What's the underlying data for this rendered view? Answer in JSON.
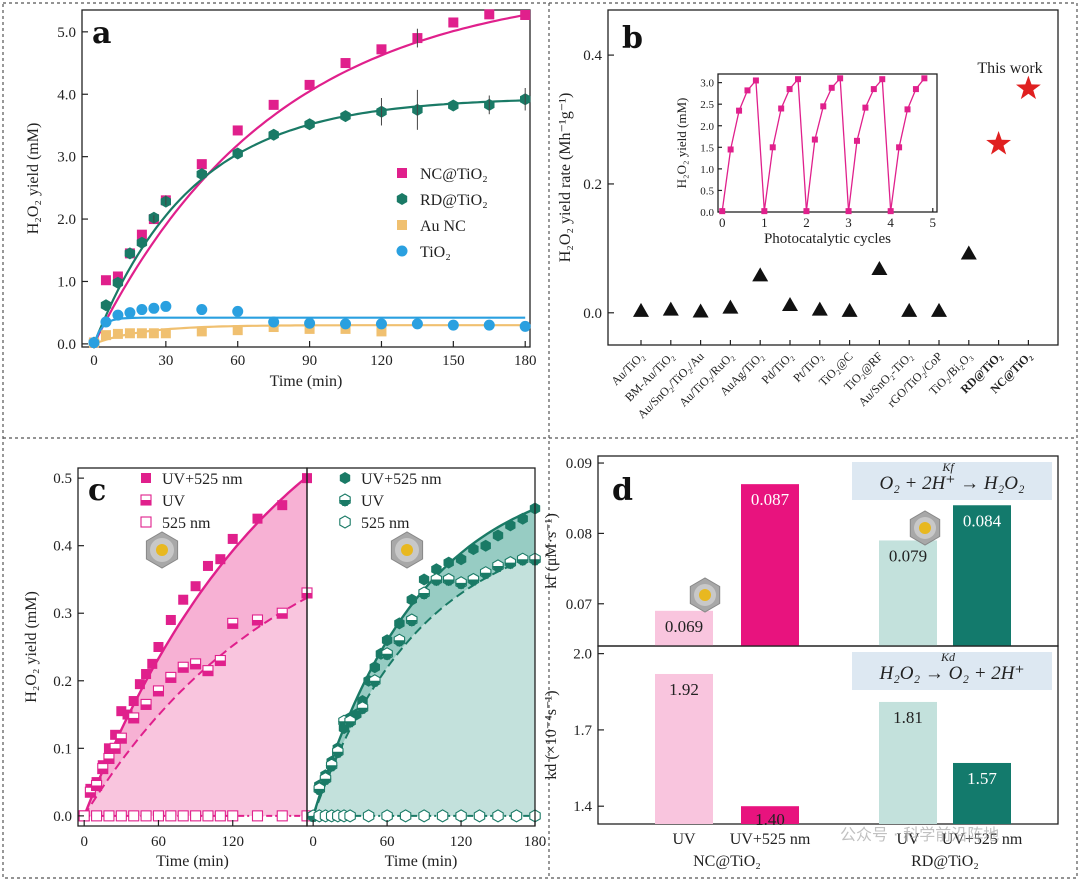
{
  "colors": {
    "nc": "#e0208c",
    "rd": "#1a7a66",
    "au": "#f0c070",
    "tio2": "#2aa0e0",
    "nc_fill": "#f6a8cf",
    "rd_fill": "#8cc6bd",
    "nc_light": "#f9c5de",
    "rd_light": "#c3e1dc",
    "star": "#e02020",
    "tri": "#111111",
    "box": "#dde8f2"
  },
  "watermark": "公众号 · 科学前沿阵地",
  "chart_data": [
    {
      "id": "a",
      "panel_label": "a",
      "type": "scatter",
      "xlabel": "Time (min)",
      "ylabel": "H₂O₂ yield (mM)",
      "xlim": [
        -5,
        182
      ],
      "ylim": [
        -0.05,
        5.35
      ],
      "xticks": [
        0,
        30,
        60,
        90,
        120,
        150,
        180
      ],
      "yticks": [
        0,
        1,
        2,
        3,
        4,
        5
      ],
      "ytick_labels": [
        "0.0",
        "1.0",
        "2.0",
        "3.0",
        "4.0",
        "5.0"
      ],
      "series": [
        {
          "name": "NC@TiO₂",
          "marker": "square",
          "color": "#e0208c",
          "x": [
            0,
            5,
            10,
            15,
            20,
            25,
            30,
            45,
            60,
            75,
            90,
            105,
            120,
            135,
            150,
            165,
            180
          ],
          "y": [
            0.02,
            1.02,
            1.08,
            1.45,
            1.75,
            2.0,
            2.3,
            2.88,
            3.42,
            3.83,
            4.15,
            4.5,
            4.72,
            4.9,
            5.15,
            5.28,
            5.27
          ],
          "fit": "exp",
          "fit_params": [
            5.8,
            0.0133
          ]
        },
        {
          "name": "RD@TiO₂",
          "marker": "hexagon",
          "color": "#1a7a66",
          "x": [
            0,
            5,
            10,
            15,
            20,
            25,
            30,
            45,
            60,
            75,
            90,
            105,
            120,
            135,
            150,
            165,
            180
          ],
          "y": [
            0.02,
            0.62,
            0.98,
            1.45,
            1.62,
            2.02,
            2.28,
            2.72,
            3.05,
            3.35,
            3.52,
            3.65,
            3.72,
            3.75,
            3.82,
            3.83,
            3.92
          ],
          "fit": "exp",
          "fit_params": [
            3.95,
            0.0245
          ]
        },
        {
          "name": "Au NC",
          "marker": "square",
          "color": "#f0c070",
          "x": [
            0,
            5,
            10,
            15,
            20,
            25,
            30,
            45,
            60,
            75,
            90,
            105,
            120
          ],
          "y": [
            0.02,
            0.14,
            0.16,
            0.17,
            0.17,
            0.17,
            0.17,
            0.2,
            0.22,
            0.27,
            0.24,
            0.24,
            0.2
          ],
          "fit": "exp",
          "fit_params": [
            0.3,
            0.05
          ]
        },
        {
          "name": "TiO₂",
          "marker": "circle",
          "color": "#2aa0e0",
          "x": [
            0,
            5,
            10,
            15,
            20,
            25,
            30,
            45,
            60,
            75,
            90,
            105,
            120,
            135,
            150,
            165,
            180
          ],
          "y": [
            0.02,
            0.35,
            0.46,
            0.5,
            0.55,
            0.57,
            0.6,
            0.55,
            0.52,
            0.35,
            0.33,
            0.32,
            0.32,
            0.32,
            0.3,
            0.3,
            0.28
          ],
          "fit": "exp",
          "fit_params": [
            0.42,
            0.3
          ]
        }
      ]
    },
    {
      "id": "b",
      "panel_label": "b",
      "type": "scatter",
      "ylabel": "H₂O₂ yield rate (Mh⁻¹g⁻¹)",
      "ylim": [
        -0.05,
        0.47
      ],
      "yticks": [
        0,
        0.2,
        0.4
      ],
      "ytick_labels": [
        "0.0",
        "0.2",
        "0.4"
      ],
      "categories": [
        "Au/TiO₂",
        "BM-Au/TiO₂",
        "Au/SnO₂/TiO₂/Au",
        "Au/TiO₂/RuO₂",
        "AuAg/TiO₂",
        "Pd/TiO₂",
        "Pt/TiO₂",
        "TiO₂@C",
        "TiO₂@RF",
        "Au/SnO₂-TiO₂",
        "rGO/TiO₂/CoP",
        "TiO₂/Bi₂O₃",
        "RD@TiO₂",
        "NC@TiO₂"
      ],
      "highlight": [
        "RD@TiO₂",
        "NC@TiO₂"
      ],
      "values": [
        0.003,
        0.005,
        0.002,
        0.008,
        0.058,
        0.012,
        0.005,
        0.003,
        0.068,
        0.003,
        0.003,
        0.092,
        0.262,
        0.348
      ],
      "annotation": "This work",
      "inset": {
        "xlabel": "Photocatalytic cycles",
        "ylabel": "H₂O₂ yield (mM)",
        "xlim": [
          -0.1,
          5.1
        ],
        "ylim": [
          0,
          3.2
        ],
        "xticks": [
          0,
          1,
          2,
          3,
          4,
          5
        ],
        "yticks": [
          0,
          0.5,
          1,
          1.5,
          2,
          2.5,
          3
        ],
        "ytick_labels": [
          "0.0",
          "0.5",
          "1.0",
          "1.5",
          "2.0",
          "2.5",
          "3.0"
        ],
        "cycles": [
          [
            0.02,
            1.45,
            2.35,
            2.82,
            3.05
          ],
          [
            0.02,
            1.5,
            2.4,
            2.85,
            3.08
          ],
          [
            0.02,
            1.68,
            2.45,
            2.88,
            3.1
          ],
          [
            0.02,
            1.65,
            2.42,
            2.85,
            3.08
          ],
          [
            0.02,
            1.5,
            2.38,
            2.85,
            3.1
          ]
        ]
      }
    },
    {
      "id": "c1",
      "panel_label": "c",
      "type": "scatter",
      "xlabel": "Time (min)",
      "ylabel": "H₂O₂ yield (mM)",
      "xlim": [
        -5,
        180
      ],
      "ylim": [
        -0.015,
        0.515
      ],
      "xticks": [
        0,
        60,
        120
      ],
      "yticks": [
        0,
        0.1,
        0.2,
        0.3,
        0.4,
        0.5
      ],
      "ytick_labels": [
        "0.0",
        "0.1",
        "0.2",
        "0.3",
        "0.4",
        "0.5"
      ],
      "series": [
        {
          "name": "UV+525 nm",
          "marker": "square",
          "color": "#e0208c",
          "x": [
            0,
            5,
            10,
            15,
            20,
            25,
            30,
            35,
            40,
            45,
            50,
            55,
            60,
            70,
            80,
            90,
            100,
            110,
            120,
            140,
            160,
            180
          ],
          "y": [
            0.0,
            0.04,
            0.05,
            0.075,
            0.1,
            0.12,
            0.155,
            0.15,
            0.17,
            0.195,
            0.21,
            0.225,
            0.25,
            0.29,
            0.32,
            0.34,
            0.37,
            0.38,
            0.41,
            0.44,
            0.46,
            0.5
          ],
          "fit": "exp",
          "fit_params": [
            0.74,
            0.0063
          ]
        },
        {
          "name": "UV",
          "marker": "half-square",
          "color": "#e0208c",
          "x": [
            0,
            5,
            10,
            15,
            20,
            25,
            30,
            40,
            50,
            60,
            70,
            80,
            90,
            100,
            110,
            120,
            140,
            160,
            180
          ],
          "y": [
            0.0,
            0.035,
            0.045,
            0.07,
            0.085,
            0.1,
            0.115,
            0.145,
            0.165,
            0.185,
            0.205,
            0.22,
            0.225,
            0.215,
            0.23,
            0.285,
            0.29,
            0.3,
            0.33
          ],
          "fit": "exp",
          "fit_params": [
            0.48,
            0.0062
          ]
        },
        {
          "name": "525 nm",
          "marker": "open-square",
          "color": "#e0208c",
          "x": [
            0,
            10,
            20,
            30,
            40,
            50,
            60,
            70,
            80,
            90,
            100,
            110,
            120,
            140,
            160,
            180
          ],
          "y": [
            0,
            0,
            0,
            0,
            0,
            0,
            0,
            0,
            0,
            0,
            0,
            0,
            0,
            0,
            0,
            0
          ],
          "fit": "flat"
        }
      ]
    },
    {
      "id": "c2",
      "panel_label": "",
      "type": "scatter",
      "xlabel": "Time (min)",
      "xlim": [
        -5,
        180
      ],
      "ylim": [
        -0.015,
        0.515
      ],
      "xticks": [
        0,
        60,
        120,
        180
      ],
      "series": [
        {
          "name": "UV+525 nm",
          "marker": "hexagon",
          "color": "#1a7a66",
          "x": [
            0,
            5,
            10,
            15,
            20,
            25,
            30,
            35,
            40,
            45,
            50,
            55,
            60,
            70,
            80,
            90,
            100,
            110,
            120,
            130,
            140,
            150,
            160,
            170,
            180
          ],
          "y": [
            0.0,
            0.045,
            0.06,
            0.08,
            0.1,
            0.13,
            0.145,
            0.15,
            0.17,
            0.2,
            0.22,
            0.24,
            0.26,
            0.285,
            0.32,
            0.35,
            0.365,
            0.375,
            0.38,
            0.395,
            0.4,
            0.415,
            0.43,
            0.44,
            0.455
          ],
          "fit": "exp",
          "fit_params": [
            0.52,
            0.0115
          ]
        },
        {
          "name": "UV",
          "marker": "half-hexagon",
          "color": "#1a7a66",
          "x": [
            0,
            5,
            10,
            15,
            20,
            25,
            30,
            40,
            50,
            60,
            70,
            80,
            90,
            100,
            110,
            120,
            130,
            140,
            150,
            160,
            170,
            180
          ],
          "y": [
            0.0,
            0.04,
            0.055,
            0.075,
            0.095,
            0.14,
            0.14,
            0.16,
            0.2,
            0.24,
            0.26,
            0.29,
            0.33,
            0.35,
            0.35,
            0.345,
            0.35,
            0.36,
            0.37,
            0.375,
            0.38,
            0.38
          ],
          "fit": "exp",
          "fit_params": [
            0.44,
            0.0115
          ]
        },
        {
          "name": "525 nm",
          "marker": "open-hexagon",
          "color": "#1a7a66",
          "x": [
            5,
            10,
            15,
            20,
            25,
            30,
            45,
            60,
            75,
            90,
            105,
            120,
            135,
            150,
            165,
            180
          ],
          "y": [
            0,
            0,
            0,
            0,
            0,
            0,
            0,
            0,
            0,
            0,
            0,
            0,
            0,
            0,
            0,
            0
          ],
          "fit": "flat"
        }
      ]
    },
    {
      "id": "d_top",
      "panel_label": "d",
      "type": "bar",
      "ylabel": "kf (μM·s⁻¹)",
      "ylim": [
        0.064,
        0.091
      ],
      "yticks": [
        0.07,
        0.08,
        0.09
      ],
      "ytick_labels": [
        "0.07",
        "0.08",
        "0.09"
      ],
      "categories": [
        "UV",
        "UV+525 nm",
        "UV",
        "UV+525 nm"
      ],
      "values": [
        0.069,
        0.087,
        0.079,
        0.084
      ],
      "value_labels": [
        "0.069",
        "0.087",
        "0.079",
        "0.084"
      ],
      "bar_colors": [
        "#f9c5de",
        "#e8137e",
        "#c3e1dc",
        "#137a6c"
      ],
      "label_colors": [
        "#222",
        "#ffffff",
        "#222",
        "#ffffff"
      ],
      "equation": "O₂ + 2H⁺ → H₂O₂",
      "equation_arrow_label": "Kf"
    },
    {
      "id": "d_bottom",
      "panel_label": "",
      "type": "bar",
      "ylabel": "kd (×10⁻⁴s⁻¹)",
      "ylim": [
        1.33,
        2.03
      ],
      "yticks": [
        1.4,
        1.7,
        2.0
      ],
      "ytick_labels": [
        "1.4",
        "1.7",
        "2.0"
      ],
      "categories": [
        "UV",
        "UV+525 nm",
        "UV",
        "UV+525 nm"
      ],
      "values": [
        1.92,
        1.4,
        1.81,
        1.57
      ],
      "value_labels": [
        "1.92",
        "1.40",
        "1.81",
        "1.57"
      ],
      "bar_colors": [
        "#f9c5de",
        "#e8137e",
        "#c3e1dc",
        "#137a6c"
      ],
      "label_colors": [
        "#222",
        "#222",
        "#222",
        "#ffffff"
      ],
      "equation": "H₂O₂ → O₂ + 2H⁺",
      "equation_arrow_label": "Kd",
      "group_labels": [
        "NC@TiO₂",
        "RD@TiO₂"
      ]
    }
  ]
}
